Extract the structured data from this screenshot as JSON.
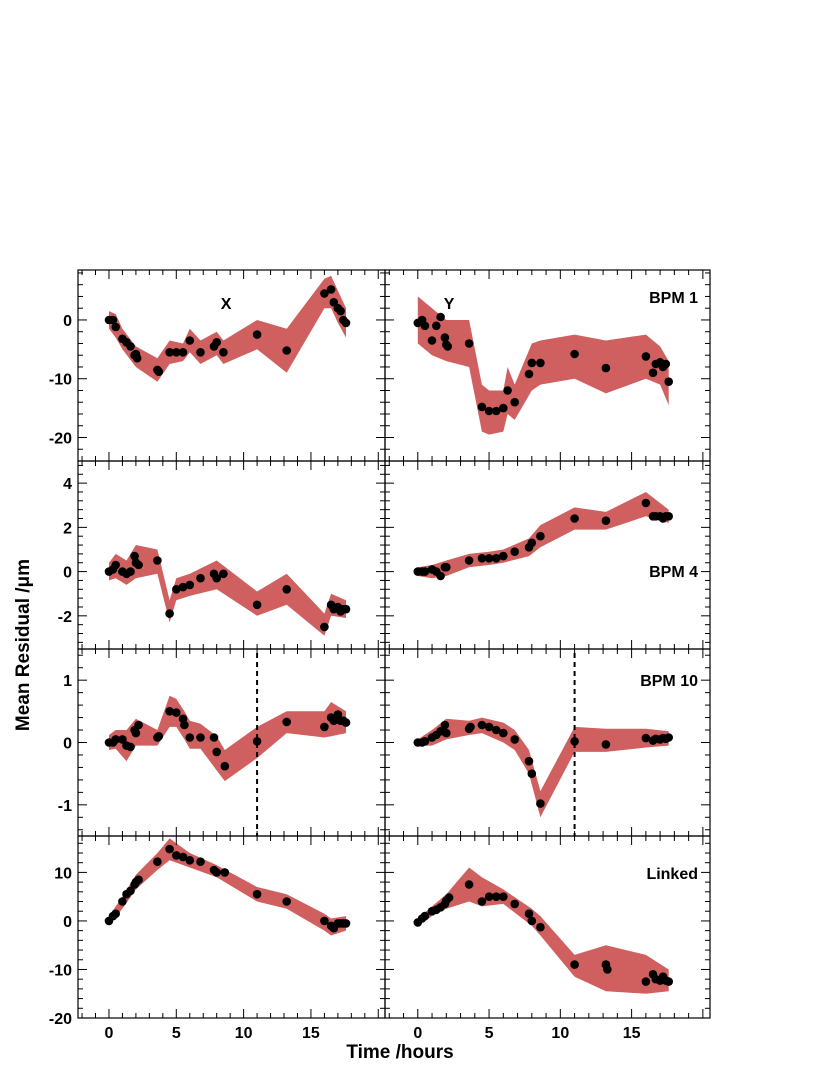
{
  "figure": {
    "xlabel": "Time /hours",
    "ylabel": "Mean Residual /μm",
    "band_color": "#d06060",
    "marker_color": "#000000",
    "x_ticks": [
      0,
      5,
      10,
      15
    ],
    "xlim": [
      -2.3,
      20.5
    ]
  },
  "rows": [
    {
      "label": "BPM 1",
      "ylim": [
        -24,
        8.5
      ],
      "yticks": [
        -20,
        -10,
        0
      ],
      "dashed_x": null
    },
    {
      "label": "BPM 4",
      "ylim": [
        -3.5,
        5.0
      ],
      "yticks": [
        -2,
        0,
        2,
        4
      ],
      "dashed_x": null
    },
    {
      "label": "BPM 10",
      "ylim": [
        -1.5,
        1.5
      ],
      "yticks": [
        -1,
        0,
        1
      ],
      "dashed_x": 11
    },
    {
      "label": "Linked",
      "ylim": [
        -20,
        17.5
      ],
      "yticks": [
        -20,
        -10,
        0,
        10
      ],
      "dashed_x": null
    }
  ],
  "columns": [
    {
      "label": "X"
    },
    {
      "label": "Y"
    }
  ],
  "chart_data": [
    {
      "type": "scatter",
      "title": "BPM 1 X",
      "x": [
        0,
        0.3,
        0.5,
        1.0,
        1.3,
        1.6,
        1.9,
        2.0,
        2.1,
        3.6,
        3.7,
        4.5,
        5.0,
        5.5,
        6.0,
        6.8,
        7.8,
        8.0,
        8.5,
        11.0,
        13.2,
        16.0,
        16.5,
        16.7,
        17.0,
        17.2,
        17.4,
        17.6
      ],
      "y": [
        0,
        0,
        -1.2,
        -3.2,
        -3.8,
        -4.5,
        -6.0,
        -5.8,
        -6.5,
        -8.5,
        -8.8,
        -5.5,
        -5.5,
        -5.5,
        -3.5,
        -5.5,
        -4.5,
        -3.8,
        -5.5,
        -2.5,
        -5.2,
        4.5,
        5.2,
        3.0,
        2.0,
        1.5,
        0,
        -0.5
      ],
      "band_x": [
        0,
        0.5,
        1.0,
        2.0,
        3.6,
        4.5,
        5.5,
        6.0,
        6.8,
        8.0,
        8.5,
        11.0,
        13.2,
        16.0,
        16.5,
        17.0,
        17.6
      ],
      "band_lo": [
        -1.5,
        -3,
        -5,
        -8,
        -10.5,
        -7.5,
        -7,
        -5.5,
        -7.5,
        -6,
        -7.5,
        -5,
        -9,
        2,
        2,
        -0.5,
        -3
      ],
      "band_hi": [
        1.5,
        1,
        -1.5,
        -4.5,
        -6.5,
        -3.5,
        -4,
        -1.5,
        -3.5,
        -2,
        -3.5,
        0,
        -1.5,
        7,
        7.5,
        5,
        2
      ],
      "xlabel": "Time /hours",
      "ylabel": "Mean Residual /μm",
      "ylim": [
        -24,
        8.5
      ]
    },
    {
      "type": "scatter",
      "title": "BPM 1 Y",
      "x": [
        0,
        0.3,
        0.5,
        1.0,
        1.3,
        1.6,
        1.9,
        2.0,
        2.1,
        3.6,
        4.5,
        5.0,
        5.5,
        6.0,
        6.3,
        6.8,
        7.8,
        8.0,
        8.6,
        11.0,
        13.2,
        16.0,
        16.5,
        16.7,
        17.0,
        17.2,
        17.4,
        17.6
      ],
      "y": [
        -0.5,
        0,
        -1,
        -3.5,
        -1,
        0.5,
        -3,
        -4.2,
        -4.5,
        -4,
        -14.8,
        -15.5,
        -15.5,
        -15,
        -12,
        -14,
        -9.2,
        -7.3,
        -7.3,
        -5.8,
        -8.2,
        -6.2,
        -9,
        -7.5,
        -7.2,
        -8,
        -7.5,
        -10.5
      ],
      "band_x": [
        0,
        1.0,
        2.0,
        3.6,
        4.5,
        5.0,
        6.0,
        6.3,
        6.8,
        8.0,
        8.6,
        11.0,
        13.2,
        16.0,
        17.0,
        17.6
      ],
      "band_lo": [
        -4,
        -6,
        -7,
        -8,
        -19,
        -19.5,
        -19,
        -16,
        -17,
        -12,
        -11,
        -10,
        -12.5,
        -10,
        -11,
        -14.5
      ],
      "band_hi": [
        4,
        2,
        0,
        0,
        -11,
        -12,
        -12,
        -8,
        -11,
        -4,
        -3.5,
        -2.5,
        -3.5,
        -2.5,
        -4.5,
        -7
      ],
      "xlabel": "Time /hours",
      "ylabel": "Mean Residual /μm",
      "ylim": [
        -24,
        8.5
      ]
    },
    {
      "type": "scatter",
      "title": "BPM 4 X",
      "x": [
        0,
        0.3,
        0.5,
        1.0,
        1.3,
        1.6,
        1.9,
        2.0,
        2.2,
        3.6,
        4.5,
        5.0,
        5.5,
        6.0,
        6.8,
        7.8,
        8.0,
        8.5,
        11.0,
        13.2,
        16.0,
        16.5,
        16.7,
        17.0,
        17.2,
        17.4,
        17.6
      ],
      "y": [
        0,
        0.1,
        0.3,
        0.0,
        -0.1,
        0.0,
        0.7,
        0.4,
        0.3,
        0.5,
        -1.9,
        -0.8,
        -0.7,
        -0.6,
        -0.3,
        -0.1,
        -0.3,
        -0.1,
        -1.5,
        -0.8,
        -2.5,
        -1.5,
        -1.7,
        -1.6,
        -1.8,
        -1.7,
        -1.7
      ],
      "band_x": [
        0,
        0.5,
        1.3,
        2.0,
        3.6,
        4.5,
        5.0,
        6.0,
        8.0,
        11.0,
        13.2,
        16.0,
        16.5,
        17.6
      ],
      "band_lo": [
        -0.4,
        -0.3,
        -0.6,
        -0.3,
        -0.1,
        -2.3,
        -1.3,
        -1.1,
        -0.8,
        -2.0,
        -1.5,
        -2.9,
        -2.0,
        -2.1
      ],
      "band_hi": [
        0.4,
        0.8,
        0.5,
        1.2,
        1.0,
        -1.3,
        -0.3,
        -0.1,
        0.5,
        -0.9,
        -0.1,
        -1.9,
        -1.0,
        -1.3
      ],
      "xlabel": "Time /hours",
      "ylabel": "Mean Residual /μm",
      "ylim": [
        -3.5,
        5.0
      ]
    },
    {
      "type": "scatter",
      "title": "BPM 4 Y",
      "x": [
        0,
        0.3,
        0.5,
        1.0,
        1.3,
        1.6,
        1.9,
        2.0,
        3.6,
        4.5,
        5.0,
        5.5,
        6.0,
        6.8,
        7.8,
        8.0,
        8.6,
        11.0,
        13.2,
        16.0,
        16.5,
        16.7,
        17.0,
        17.2,
        17.4,
        17.6
      ],
      "y": [
        0,
        0,
        0,
        0.1,
        0,
        -0.2,
        0.2,
        0.2,
        0.5,
        0.6,
        0.6,
        0.6,
        0.7,
        0.9,
        1.1,
        1.3,
        1.6,
        2.4,
        2.3,
        3.1,
        2.5,
        2.5,
        2.5,
        2.4,
        2.5,
        2.5
      ],
      "band_x": [
        0,
        1.0,
        2.0,
        3.6,
        5.0,
        6.0,
        7.8,
        8.6,
        11.0,
        13.2,
        16.0,
        17.6
      ],
      "band_lo": [
        -0.2,
        -0.3,
        -0.2,
        0.2,
        0.3,
        0.4,
        0.7,
        1.1,
        1.9,
        1.9,
        2.5,
        2.2
      ],
      "band_hi": [
        0.2,
        0.3,
        0.5,
        0.8,
        0.9,
        1.0,
        1.5,
        2.1,
        2.9,
        2.7,
        3.6,
        2.8
      ],
      "xlabel": "Time /hours",
      "ylabel": "Mean Residual /μm",
      "ylim": [
        -3.5,
        5.0
      ]
    },
    {
      "type": "scatter",
      "title": "BPM 10 X",
      "x": [
        0,
        0.3,
        0.5,
        1.0,
        1.3,
        1.6,
        1.9,
        2.0,
        2.2,
        3.6,
        3.7,
        4.5,
        5.0,
        5.5,
        5.6,
        6.0,
        6.8,
        7.8,
        8.0,
        8.6,
        11.0,
        13.2,
        16.0,
        16.5,
        16.7,
        17.0,
        17.2,
        17.4,
        17.6
      ],
      "y": [
        0,
        0,
        0.05,
        0.05,
        -0.05,
        -0.07,
        0.2,
        0.15,
        0.28,
        0.08,
        0.1,
        0.5,
        0.48,
        0.38,
        0.28,
        0.08,
        0.08,
        0.08,
        -0.15,
        -0.38,
        0.02,
        0.33,
        0.25,
        0.4,
        0.35,
        0.45,
        0.35,
        0.35,
        0.32
      ],
      "band_x": [
        0,
        0.5,
        1.3,
        2.0,
        3.6,
        4.5,
        5.0,
        5.6,
        6.0,
        6.8,
        8.0,
        8.6,
        11.0,
        13.2,
        16.0,
        16.5,
        17.6
      ],
      "band_lo": [
        -0.12,
        -0.1,
        -0.3,
        -0.05,
        -0.05,
        0.25,
        0.25,
        0.05,
        -0.1,
        -0.1,
        -0.45,
        -0.62,
        -0.25,
        0.15,
        0.08,
        0.1,
        0.15
      ],
      "band_hi": [
        0.12,
        0.2,
        0.2,
        0.38,
        0.2,
        0.75,
        0.7,
        0.5,
        0.35,
        0.3,
        0.1,
        -0.12,
        0.25,
        0.5,
        0.5,
        0.65,
        0.5
      ],
      "xlabel": "Time /hours",
      "ylabel": "Mean Residual /μm",
      "ylim": [
        -1.5,
        1.5
      ]
    },
    {
      "type": "scatter",
      "title": "BPM 10 Y",
      "x": [
        0,
        0.3,
        0.5,
        1.0,
        1.3,
        1.6,
        1.9,
        2.0,
        3.6,
        3.7,
        4.5,
        5.0,
        5.5,
        6.0,
        6.8,
        7.8,
        8.0,
        8.6,
        11.0,
        13.2,
        16.0,
        16.5,
        16.7,
        17.0,
        17.2,
        17.4,
        17.6
      ],
      "y": [
        0,
        0,
        0.02,
        0.08,
        0.12,
        0.18,
        0.28,
        0.15,
        0.22,
        0.25,
        0.28,
        0.25,
        0.2,
        0.15,
        0.05,
        -0.3,
        -0.5,
        -0.98,
        0.02,
        -0.03,
        0.07,
        0.03,
        0.06,
        0.05,
        0.07,
        0.06,
        0.08
      ],
      "band_x": [
        0,
        1.0,
        2.0,
        3.6,
        4.5,
        6.0,
        6.8,
        7.8,
        8.6,
        11.0,
        13.2,
        16.0,
        17.6
      ],
      "band_lo": [
        -0.05,
        -0.05,
        0.05,
        0.12,
        0.15,
        0.0,
        -0.12,
        -0.5,
        -1.2,
        -0.15,
        -0.15,
        -0.08,
        -0.05
      ],
      "band_hi": [
        0.05,
        0.2,
        0.38,
        0.35,
        0.4,
        0.32,
        0.2,
        -0.12,
        -0.78,
        0.25,
        0.22,
        0.22,
        0.18
      ],
      "xlabel": "Time /hours",
      "ylabel": "Mean Residual /μm",
      "ylim": [
        -1.5,
        1.5
      ]
    },
    {
      "type": "scatter",
      "title": "Linked X",
      "x": [
        0,
        0.3,
        0.5,
        1.0,
        1.3,
        1.6,
        1.9,
        2.0,
        2.2,
        3.6,
        4.5,
        5.0,
        5.5,
        6.0,
        6.8,
        7.8,
        8.0,
        8.6,
        11.0,
        13.2,
        16.0,
        16.5,
        16.7,
        17.0,
        17.2,
        17.4,
        17.6
      ],
      "y": [
        0,
        1,
        1.5,
        4,
        5.5,
        6.2,
        7.5,
        8,
        8.5,
        12.2,
        14.8,
        13.5,
        13.2,
        12.5,
        12.2,
        10.5,
        10,
        10,
        5.5,
        4,
        0,
        -1,
        -1.5,
        -0.5,
        -0.5,
        -0.5,
        -0.5
      ],
      "band_x": [
        0,
        1.0,
        2.0,
        3.6,
        4.5,
        6.0,
        8.0,
        11.0,
        13.2,
        16.0,
        16.5,
        17.6
      ],
      "band_lo": [
        -1,
        2.5,
        6.5,
        10.5,
        12.5,
        11,
        9,
        4,
        2.5,
        -2,
        -3,
        -2
      ],
      "band_hi": [
        1,
        5,
        9.5,
        14,
        17,
        14,
        11.5,
        7,
        5.5,
        1.5,
        0.5,
        1
      ],
      "xlabel": "Time /hours",
      "ylabel": "Mean Residual /μm",
      "ylim": [
        -20,
        17.5
      ]
    },
    {
      "type": "scatter",
      "title": "Linked Y",
      "x": [
        0,
        0.3,
        0.5,
        1.0,
        1.3,
        1.6,
        1.9,
        2.0,
        2.2,
        3.6,
        4.5,
        5.0,
        5.5,
        6.0,
        6.8,
        7.8,
        8.0,
        8.6,
        11.0,
        13.2,
        13.3,
        16.0,
        16.5,
        16.7,
        17.0,
        17.2,
        17.4,
        17.6
      ],
      "y": [
        -0.3,
        0.5,
        1,
        2,
        2.3,
        2.8,
        3.5,
        4.2,
        4.8,
        7.5,
        4,
        5,
        5,
        5,
        3.5,
        1.5,
        0,
        -1.3,
        -9,
        -9,
        -10,
        -12.5,
        -11,
        -12,
        -12.3,
        -11.5,
        -12.3,
        -12.5
      ],
      "band_x": [
        0,
        1.0,
        2.0,
        3.6,
        4.5,
        6.0,
        8.0,
        8.6,
        11.0,
        13.2,
        16.0,
        17.6
      ],
      "band_lo": [
        -1,
        1,
        2.5,
        4,
        3,
        3.5,
        -1,
        -3,
        -11.5,
        -14.5,
        -15,
        -14.5
      ],
      "band_hi": [
        0.5,
        3,
        5.5,
        11,
        9,
        6.5,
        2.5,
        1,
        -7,
        -5,
        -7,
        -10
      ],
      "xlabel": "Time /hours",
      "ylabel": "Mean Residual /μm",
      "ylim": [
        -20,
        17.5
      ]
    }
  ]
}
